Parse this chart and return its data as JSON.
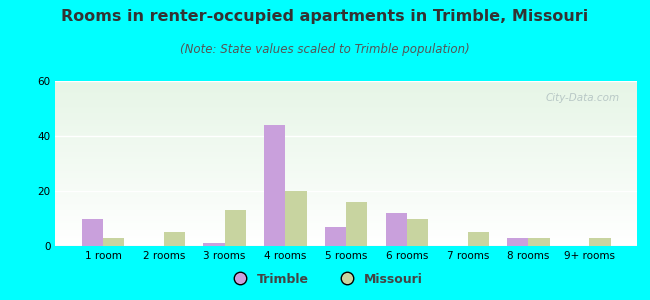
{
  "title": "Rooms in renter-occupied apartments in Trimble, Missouri",
  "subtitle": "(Note: State values scaled to Trimble population)",
  "categories": [
    "1 room",
    "2 rooms",
    "3 rooms",
    "4 rooms",
    "5 rooms",
    "6 rooms",
    "7 rooms",
    "8 rooms",
    "9+ rooms"
  ],
  "trimble_values": [
    10,
    0,
    1,
    44,
    7,
    12,
    0,
    3,
    0
  ],
  "missouri_values": [
    3,
    5,
    13,
    20,
    16,
    10,
    5,
    3,
    3
  ],
  "trimble_color": "#c9a0dc",
  "missouri_color": "#c8d4a0",
  "background_color": "#00ffff",
  "ylim": [
    0,
    60
  ],
  "yticks": [
    0,
    20,
    40,
    60
  ],
  "bar_width": 0.35,
  "title_fontsize": 11.5,
  "subtitle_fontsize": 8.5,
  "tick_fontsize": 7.5,
  "legend_fontsize": 9,
  "watermark_text": "City-Data.com"
}
